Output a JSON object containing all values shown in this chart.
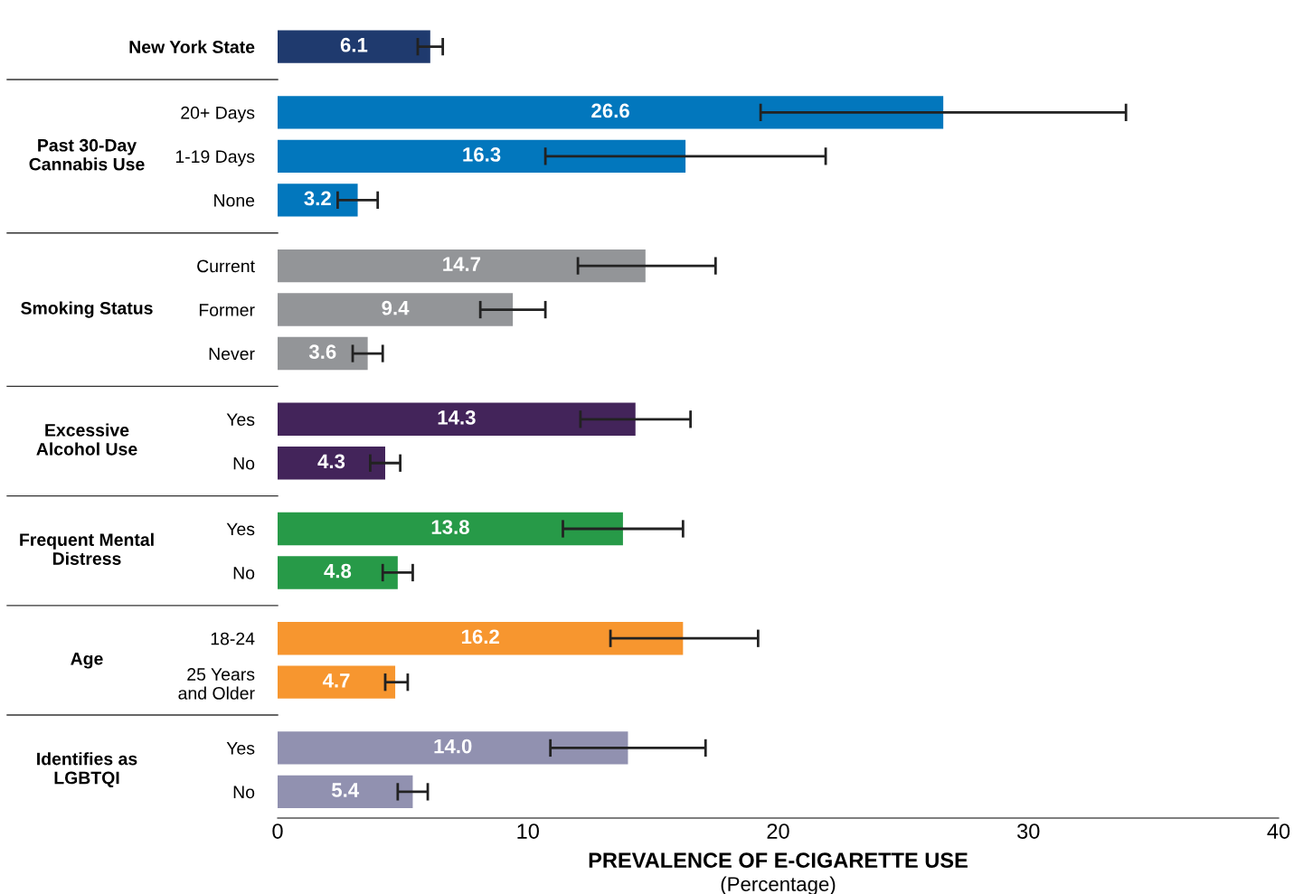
{
  "chart_data": {
    "type": "bar",
    "orientation": "horizontal",
    "categories": [
      "New York State",
      "20+ Days",
      "1-19 Days",
      "None",
      "Current",
      "Former",
      "Never",
      "Yes",
      "No",
      "Yes",
      "No",
      "18-24",
      "25 Years\nand Older",
      "Yes",
      "No"
    ],
    "values": [
      6.1,
      26.6,
      16.3,
      3.2,
      14.7,
      9.4,
      3.6,
      14.3,
      4.3,
      13.8,
      4.8,
      16.2,
      4.7,
      14.0,
      5.4
    ],
    "colors": [
      "#1f3a6e",
      "#0277bd",
      "#0277bd",
      "#0277bd",
      "#939598",
      "#939598",
      "#939598",
      "#43245a",
      "#43245a",
      "#279a48",
      "#279a48",
      "#f7962f",
      "#f7962f",
      "#9191b0",
      "#9191b0"
    ],
    "errors": [
      [
        5.6,
        6.6
      ],
      [
        19.3,
        33.9
      ],
      [
        10.7,
        21.9
      ],
      [
        2.4,
        4.0
      ],
      [
        12.0,
        17.5
      ],
      [
        8.1,
        10.7
      ],
      [
        3.0,
        4.2
      ],
      [
        12.1,
        16.5
      ],
      [
        3.7,
        4.9
      ],
      [
        11.4,
        16.2
      ],
      [
        4.2,
        5.4
      ],
      [
        13.3,
        19.2
      ],
      [
        4.3,
        5.2
      ],
      [
        10.9,
        17.1
      ],
      [
        4.8,
        6.0
      ]
    ],
    "value_labels": [
      "6.1",
      "26.6",
      "16.3",
      "3.2",
      "14.7",
      "9.4",
      "3.6",
      "14.3",
      "4.3",
      "13.8",
      "4.8",
      "16.2",
      "4.7",
      "14.0",
      "5.4"
    ],
    "annotations": [
      "Past 30-Day\nCannabis Use",
      "Smoking Status",
      "Excessive\nAlcohol Use",
      "Frequent Mental\nDistress",
      "Age",
      "Identifies as\nLGBTQI"
    ],
    "xlabel": "PREVALENCE OF E-CIGARETTE USE\n(Percentage)",
    "xlim": [
      0,
      40
    ],
    "xticks": [
      0,
      10,
      20,
      30,
      40
    ],
    "grid": false,
    "legend": false
  }
}
